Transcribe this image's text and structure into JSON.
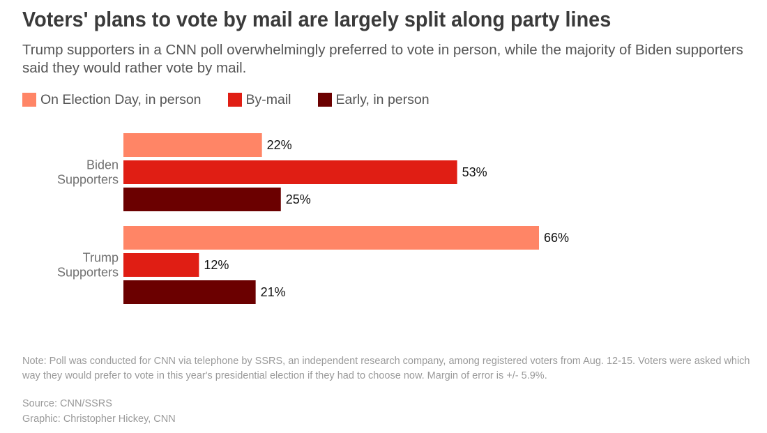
{
  "title": "Voters' plans to vote by mail are largely split along party lines",
  "subtitle": "Trump supporters in a CNN poll overwhelmingly preferred to vote in person, while the majority of Biden supporters said they would rather vote by mail.",
  "note": "Note: Poll was conducted for CNN via telephone by SSRS, an independent research company, among registered voters from Aug. 12-15. Voters were asked which way they would prefer to vote in this year's presidential election if they had to choose now. Margin of error is +/- 5.9%.",
  "source": "Source: CNN/SSRS",
  "credit": "Graphic: Christopher Hickey, CNN",
  "chart_data": {
    "type": "bar",
    "orientation": "horizontal",
    "grouped": true,
    "title": "Voters' plans to vote by mail are largely split along party lines",
    "categories": [
      [
        "Biden",
        "Supporters"
      ],
      [
        "Trump",
        "Supporters"
      ]
    ],
    "series": [
      {
        "name": "On Election Day, in person",
        "color": "#ff8566",
        "values": [
          22,
          66
        ],
        "labels": [
          "22%",
          "66%"
        ]
      },
      {
        "name": "By-mail",
        "color": "#e01e14",
        "values": [
          53,
          12
        ],
        "labels": [
          "53%",
          "12%"
        ]
      },
      {
        "name": "Early, in person",
        "color": "#6b0000",
        "values": [
          25,
          21
        ],
        "labels": [
          "25%",
          "21%"
        ]
      }
    ],
    "value_unit": "%",
    "xlim": [
      0,
      100
    ],
    "grid": false,
    "legend_position": "top-left"
  }
}
